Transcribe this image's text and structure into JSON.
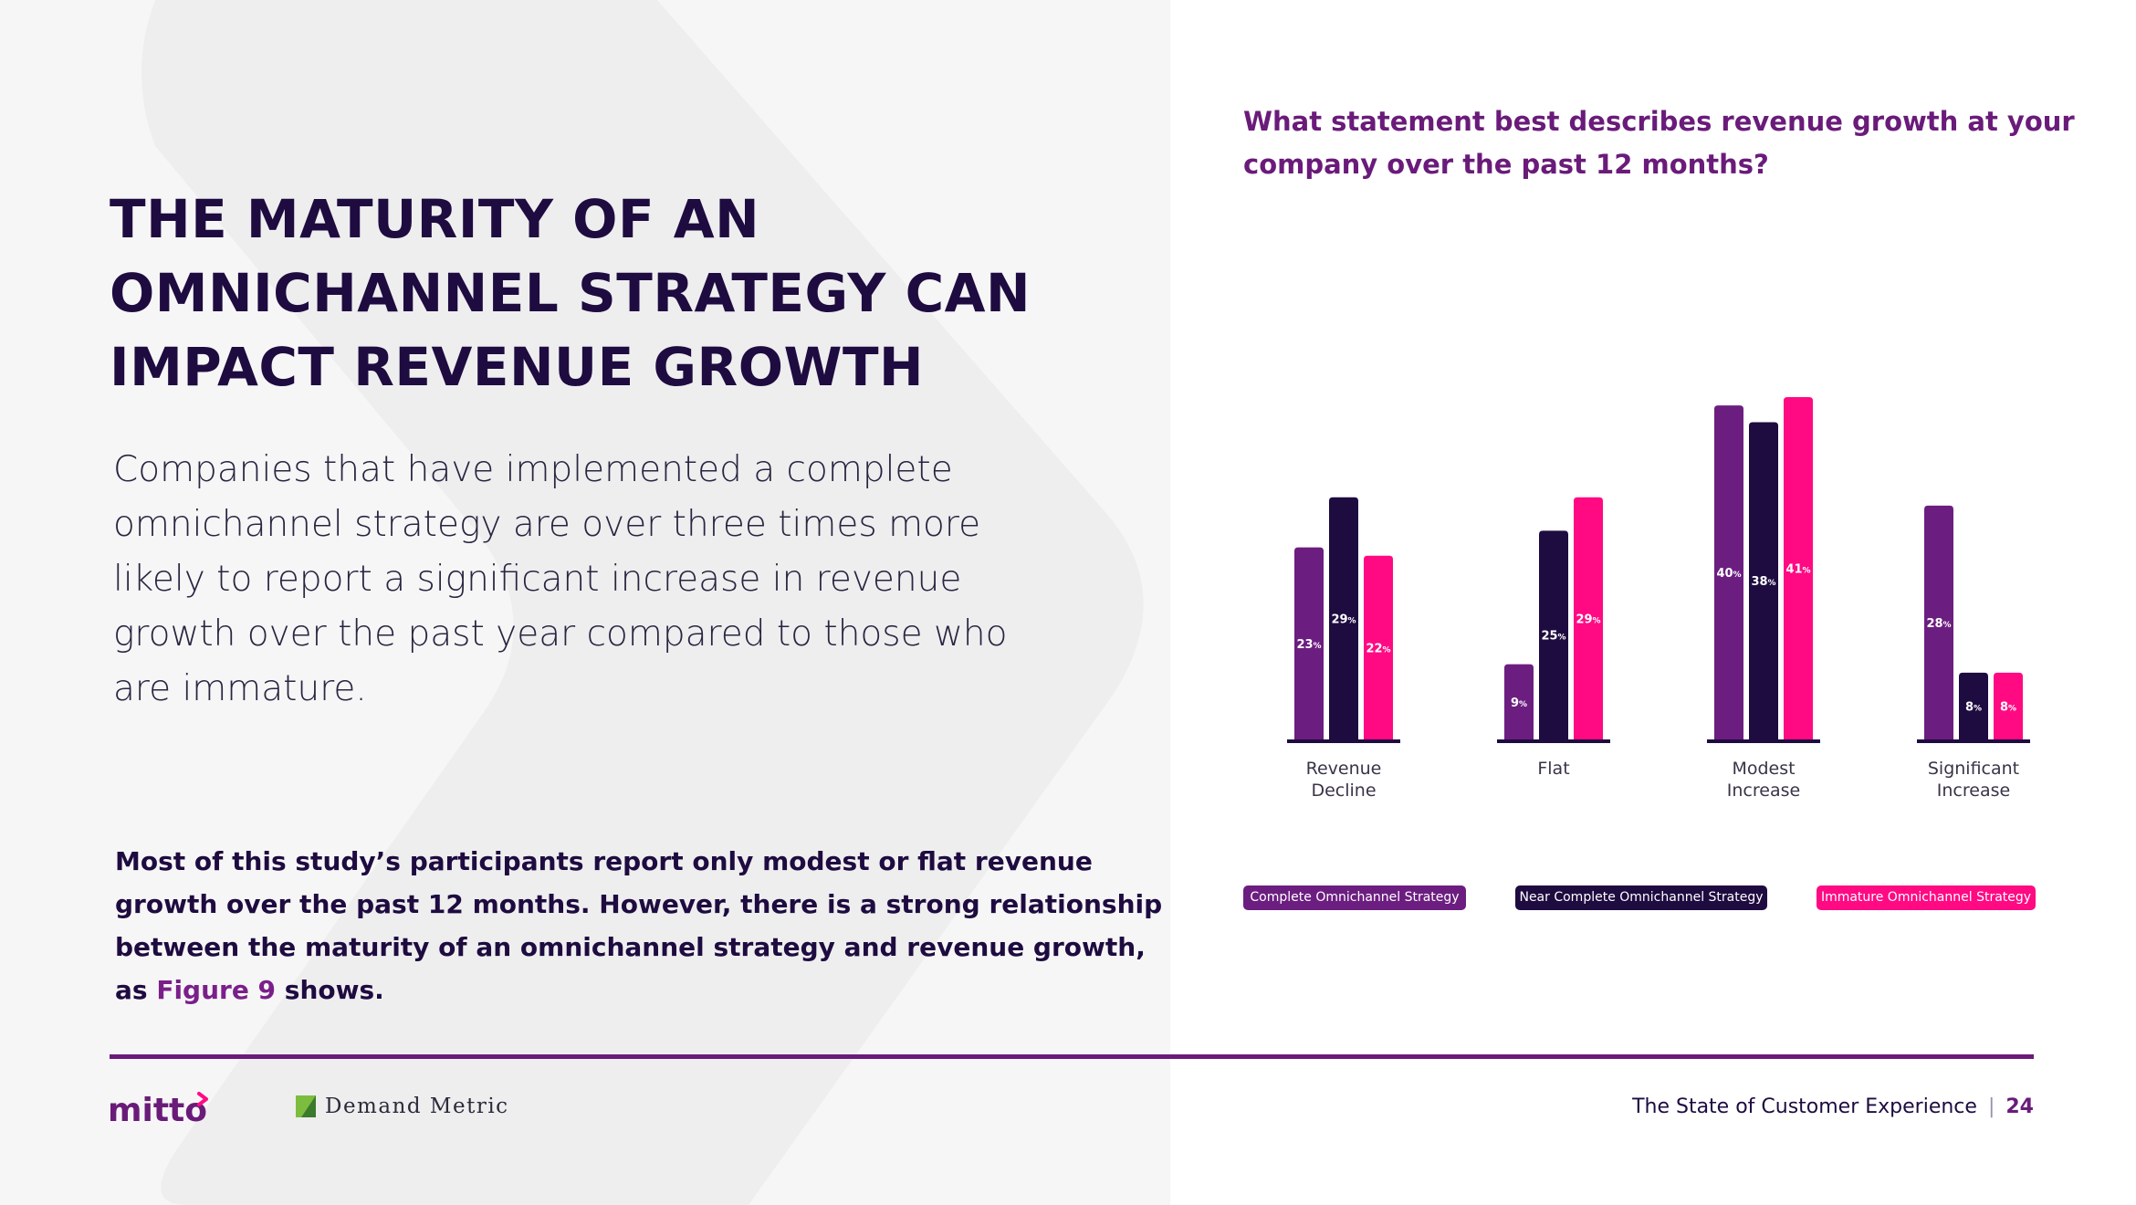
{
  "page": {
    "title_lines": [
      "THE MATURITY OF AN",
      "OMNICHANNEL STRATEGY CAN",
      "IMPACT REVENUE GROWTH"
    ],
    "intro_lines": [
      "Companies that have implemented a complete",
      "omnichannel strategy are over three times more",
      "likely to report a significant increase in revenue",
      "growth over the past year compared to those who",
      "are immature."
    ],
    "summary": {
      "line1": "Most of this study’s participants report only modest or flat revenue",
      "line2": "growth over the past 12 months. However, there is a strong relationship",
      "line3": "between the maturity of an omnichannel strategy and revenue growth,",
      "line4_prefix": "as ",
      "line4_link": "Figure 9",
      "line4_suffix": " shows."
    },
    "question_lines": [
      "What statement best describes revenue growth at your",
      "company over the past 12 months?"
    ]
  },
  "chart_data": {
    "type": "bar",
    "categories": [
      [
        "Revenue",
        "Decline"
      ],
      [
        "Flat"
      ],
      [
        "Modest",
        "Increase"
      ],
      [
        "Significant",
        "Increase"
      ]
    ],
    "series": [
      {
        "name": "Complete Omnichannel Strategy",
        "values": [
          23,
          9,
          40,
          28
        ],
        "color": "#6c1e80"
      },
      {
        "name": "Near Complete Omnichannel Strategy",
        "values": [
          29,
          25,
          38,
          8
        ],
        "color": "#1e0b40"
      },
      {
        "name": "Immature Omnichannel Strategy",
        "values": [
          22,
          29,
          41,
          8
        ],
        "color": "#ff0a83"
      }
    ],
    "value_suffix": "%",
    "ylim": [
      0,
      41
    ],
    "legend_placement": "bottom"
  },
  "legend": {
    "complete": "Complete Omnichannel Strategy",
    "near": "Near Complete Omnichannel Strategy",
    "immature": "Immature Omnichannel Strategy"
  },
  "footer": {
    "mitto_logo": "mitto",
    "dm_logo": "Demand Metric",
    "report_title": "The State of Customer Experience",
    "separator": "|",
    "page_number": "24"
  },
  "colors": {
    "accent": "#6a1b7a",
    "dark": "#1e0b40",
    "pink": "#ff0a83",
    "purple": "#6c1e80"
  }
}
